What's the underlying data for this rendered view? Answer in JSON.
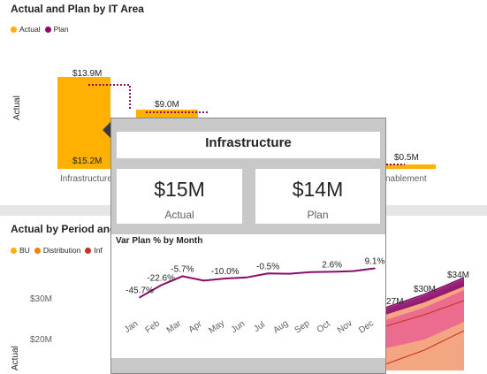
{
  "top_visual": {
    "title": "Actual and Plan by IT Area",
    "legend": [
      {
        "label": "Actual",
        "color": "#FFB000"
      },
      {
        "label": "Plan",
        "color": "#8B0A6A"
      }
    ],
    "y_axis_title": "Actual",
    "categories": [
      "Infrastructure",
      "Enablement"
    ],
    "category_visible_text": [
      "Infrastructure",
      "nablement"
    ],
    "plan_labels": [
      "$13.9M",
      "$9.0M",
      "$0.5M"
    ],
    "actual_labels": [
      "$15.2M"
    ]
  },
  "bottom_visual": {
    "title": "Actual by Period and",
    "legend": [
      {
        "label": "BU",
        "color": "#FFB000"
      },
      {
        "label": "Distribution",
        "color": "#E8830F"
      },
      {
        "label": "Inf",
        "color": "#C9301D"
      }
    ],
    "y_axis_title": "Actual",
    "y_ticks": [
      "$30M",
      "$20M"
    ],
    "data_labels": [
      "$34M",
      "$30M",
      "27M"
    ]
  },
  "tooltip": {
    "title": "Infrastructure",
    "actual_value": "$15M",
    "actual_label": "Actual",
    "plan_value": "$14M",
    "plan_label": "Plan",
    "chart_title": "Var Plan % by Month"
  },
  "chart_data": {
    "type": "line",
    "title": "Var Plan % by Month",
    "categories": [
      "Jan",
      "Feb",
      "Mar",
      "Apr",
      "May",
      "Jun",
      "Jul",
      "Aug",
      "Sep",
      "Oct",
      "Nov",
      "Dec"
    ],
    "series": [
      {
        "values": [
          -45.7,
          -22.6,
          -5.7,
          -14.0,
          -10.0,
          -8.0,
          -0.5,
          -1.0,
          2.0,
          2.6,
          4.0,
          9.1
        ],
        "labels": [
          "-45.7%",
          "-22.6%",
          "-5.7%",
          "",
          "-10.0%",
          "",
          "-0.5%",
          "",
          "",
          "2.6%",
          "",
          "9.1%"
        ],
        "color": "#8B0A6A"
      }
    ],
    "ylim": [
      -55,
      15
    ],
    "grid": false,
    "legend": "none"
  }
}
